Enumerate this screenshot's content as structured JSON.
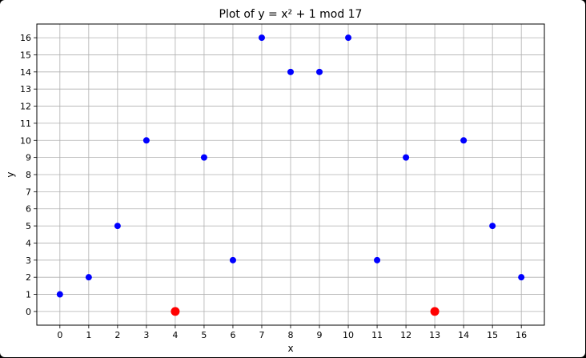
{
  "chart_data": {
    "type": "scatter",
    "title": "Plot of y = x² + 1 mod 17",
    "xlabel": "x",
    "ylabel": "y",
    "xlim": [
      -0.8,
      16.8
    ],
    "ylim": [
      -0.8,
      16.8
    ],
    "xticks": [
      0,
      1,
      2,
      3,
      4,
      5,
      6,
      7,
      8,
      9,
      10,
      11,
      12,
      13,
      14,
      15,
      16
    ],
    "yticks": [
      0,
      1,
      2,
      3,
      4,
      5,
      6,
      7,
      8,
      9,
      10,
      11,
      12,
      13,
      14,
      15,
      16
    ],
    "grid": true,
    "series": [
      {
        "color": "#0000ff",
        "x": [
          0,
          1,
          2,
          3,
          5,
          6,
          7,
          8,
          9,
          10,
          11,
          12,
          14,
          15,
          16
        ],
        "y": [
          1,
          2,
          5,
          10,
          9,
          3,
          16,
          14,
          14,
          16,
          3,
          9,
          10,
          5,
          2
        ]
      },
      {
        "color": "#ff0000",
        "x": [
          4,
          13
        ],
        "y": [
          0,
          0
        ]
      }
    ]
  }
}
